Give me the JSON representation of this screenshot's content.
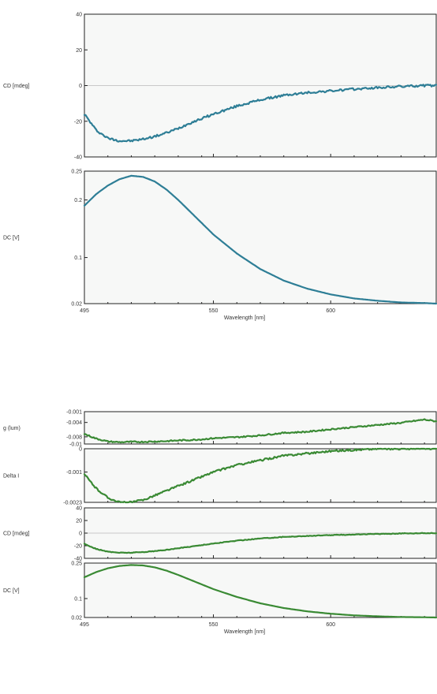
{
  "chart_data": [
    {
      "figure": "top",
      "type": "line",
      "color": "#2e7e96",
      "xlabel": "Wavelength [nm]",
      "xlim": [
        495,
        645
      ],
      "xticks": [
        "495",
        "550",
        "600"
      ],
      "panels": [
        {
          "ylabel": "CD [mdeg]",
          "ylim": [
            -40,
            40
          ],
          "yticks": [
            "40",
            "20",
            "0",
            "-20",
            "-40"
          ],
          "zero_line": true,
          "noise": 0.6,
          "series": [
            {
              "x": [
                495,
                500,
                505,
                510,
                515,
                520,
                525,
                530,
                535,
                540,
                545,
                550,
                560,
                570,
                580,
                590,
                600,
                610,
                620,
                630,
                640,
                645
              ],
              "y": [
                -16,
                -25,
                -29.5,
                -31,
                -31,
                -30,
                -28.5,
                -26.5,
                -24,
                -21,
                -18.5,
                -16,
                -11.5,
                -8,
                -5.5,
                -4,
                -3,
                -2,
                -1.2,
                -0.5,
                0,
                0
              ]
            }
          ]
        },
        {
          "ylabel": "DC [V]",
          "ylim": [
            0.02,
            0.25
          ],
          "yticks": [
            "0.25",
            "0.2",
            "0.1",
            "0.02"
          ],
          "zero_line": false,
          "noise": 0,
          "series": [
            {
              "x": [
                495,
                500,
                505,
                510,
                515,
                520,
                525,
                530,
                535,
                540,
                545,
                550,
                560,
                570,
                580,
                590,
                600,
                610,
                620,
                630,
                640,
                645
              ],
              "y": [
                0.19,
                0.21,
                0.225,
                0.236,
                0.242,
                0.24,
                0.232,
                0.218,
                0.2,
                0.18,
                0.16,
                0.14,
                0.107,
                0.08,
                0.06,
                0.046,
                0.036,
                0.029,
                0.025,
                0.022,
                0.021,
                0.02
              ]
            }
          ]
        }
      ]
    },
    {
      "figure": "bottom",
      "type": "line",
      "color": "#3a8a34",
      "xlabel": "Wavelength [nm]",
      "xlim": [
        495,
        645
      ],
      "xticks": [
        "495",
        "550",
        "600"
      ],
      "panels": [
        {
          "ylabel": "g (lum)",
          "ylim": [
            -0.01,
            -0.001
          ],
          "yticks": [
            "-0.001",
            "-0.004",
            "-0.008",
            "-0.01"
          ],
          "zero_line": false,
          "noise": 0.00018,
          "series": [
            {
              "x": [
                495,
                500,
                505,
                510,
                515,
                520,
                525,
                530,
                535,
                540,
                545,
                550,
                560,
                570,
                580,
                590,
                600,
                610,
                620,
                630,
                640,
                645
              ],
              "y": [
                -0.0072,
                -0.0085,
                -0.0093,
                -0.0095,
                -0.0094,
                -0.0094,
                -0.0093,
                -0.0092,
                -0.009,
                -0.0089,
                -0.0087,
                -0.0084,
                -0.0081,
                -0.0076,
                -0.0069,
                -0.0066,
                -0.0059,
                -0.0053,
                -0.0047,
                -0.0041,
                -0.0032,
                -0.0037
              ]
            }
          ]
        },
        {
          "ylabel": "Delta I",
          "ylim": [
            -0.0023,
            0
          ],
          "yticks": [
            "0",
            "-0.001",
            "-0.0023"
          ],
          "zero_line": false,
          "noise": 4e-05,
          "series": [
            {
              "x": [
                495,
                500,
                505,
                510,
                515,
                520,
                525,
                530,
                535,
                540,
                545,
                550,
                560,
                570,
                580,
                590,
                600,
                610,
                620,
                630,
                640,
                645
              ],
              "y": [
                -0.0011,
                -0.0017,
                -0.0021,
                -0.0023,
                -0.0023,
                -0.0022,
                -0.002,
                -0.0018,
                -0.0016,
                -0.0014,
                -0.0012,
                -0.001,
                -0.0007,
                -0.0005,
                -0.0003,
                -0.0002,
                -0.0001,
                -5e-05,
                0,
                0,
                0,
                0
              ]
            }
          ]
        },
        {
          "ylabel": "CD [mdeg]",
          "ylim": [
            -40,
            40
          ],
          "yticks": [
            "40",
            "20",
            "0",
            "-20",
            "-40"
          ],
          "zero_line": true,
          "noise": 0.5,
          "series": [
            {
              "x": [
                495,
                500,
                505,
                510,
                515,
                520,
                525,
                530,
                535,
                540,
                545,
                550,
                560,
                570,
                580,
                590,
                600,
                610,
                620,
                630,
                640,
                645
              ],
              "y": [
                -17,
                -25,
                -29.5,
                -31,
                -31,
                -30,
                -28.5,
                -26.5,
                -24,
                -21.5,
                -19,
                -16.5,
                -12,
                -8.5,
                -6,
                -4.5,
                -3.2,
                -2.2,
                -1.3,
                -0.6,
                0,
                0
              ]
            }
          ]
        },
        {
          "ylabel": "DC [V]",
          "ylim": [
            0.02,
            0.25
          ],
          "yticks": [
            "0.25",
            "0.1",
            "0.02"
          ],
          "zero_line": false,
          "noise": 0,
          "series": [
            {
              "x": [
                495,
                500,
                505,
                510,
                515,
                520,
                525,
                530,
                535,
                540,
                545,
                550,
                560,
                570,
                580,
                590,
                600,
                610,
                620,
                630,
                640,
                645
              ],
              "y": [
                0.19,
                0.212,
                0.228,
                0.238,
                0.242,
                0.24,
                0.232,
                0.218,
                0.2,
                0.18,
                0.16,
                0.14,
                0.107,
                0.08,
                0.06,
                0.046,
                0.036,
                0.029,
                0.025,
                0.022,
                0.021,
                0.02
              ]
            }
          ]
        }
      ]
    }
  ]
}
